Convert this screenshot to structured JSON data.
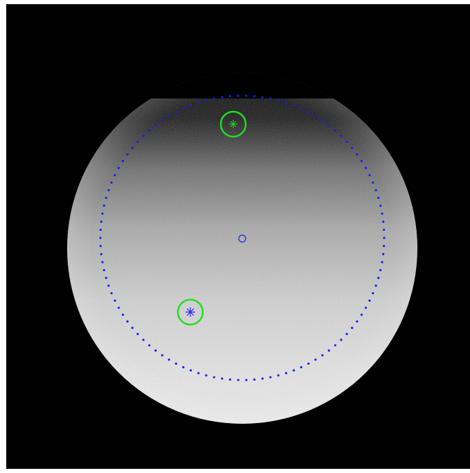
{
  "image": {
    "background_color": "#000000",
    "border_color": "#ffffff",
    "disk": {
      "description_colors": {
        "bright_limb": "#f2f2f2",
        "mid_tone": "#bdbdbd",
        "dark_top": "#1a1a1a"
      }
    },
    "overlays": {
      "dotted_circle_color": "#1a1aff",
      "center_marker_color": "#2222ee",
      "highlight_ring_color": "#22dd22",
      "star_marker_top_color": "#22cc22",
      "star_marker_bottom_color": "#2222ff"
    }
  }
}
